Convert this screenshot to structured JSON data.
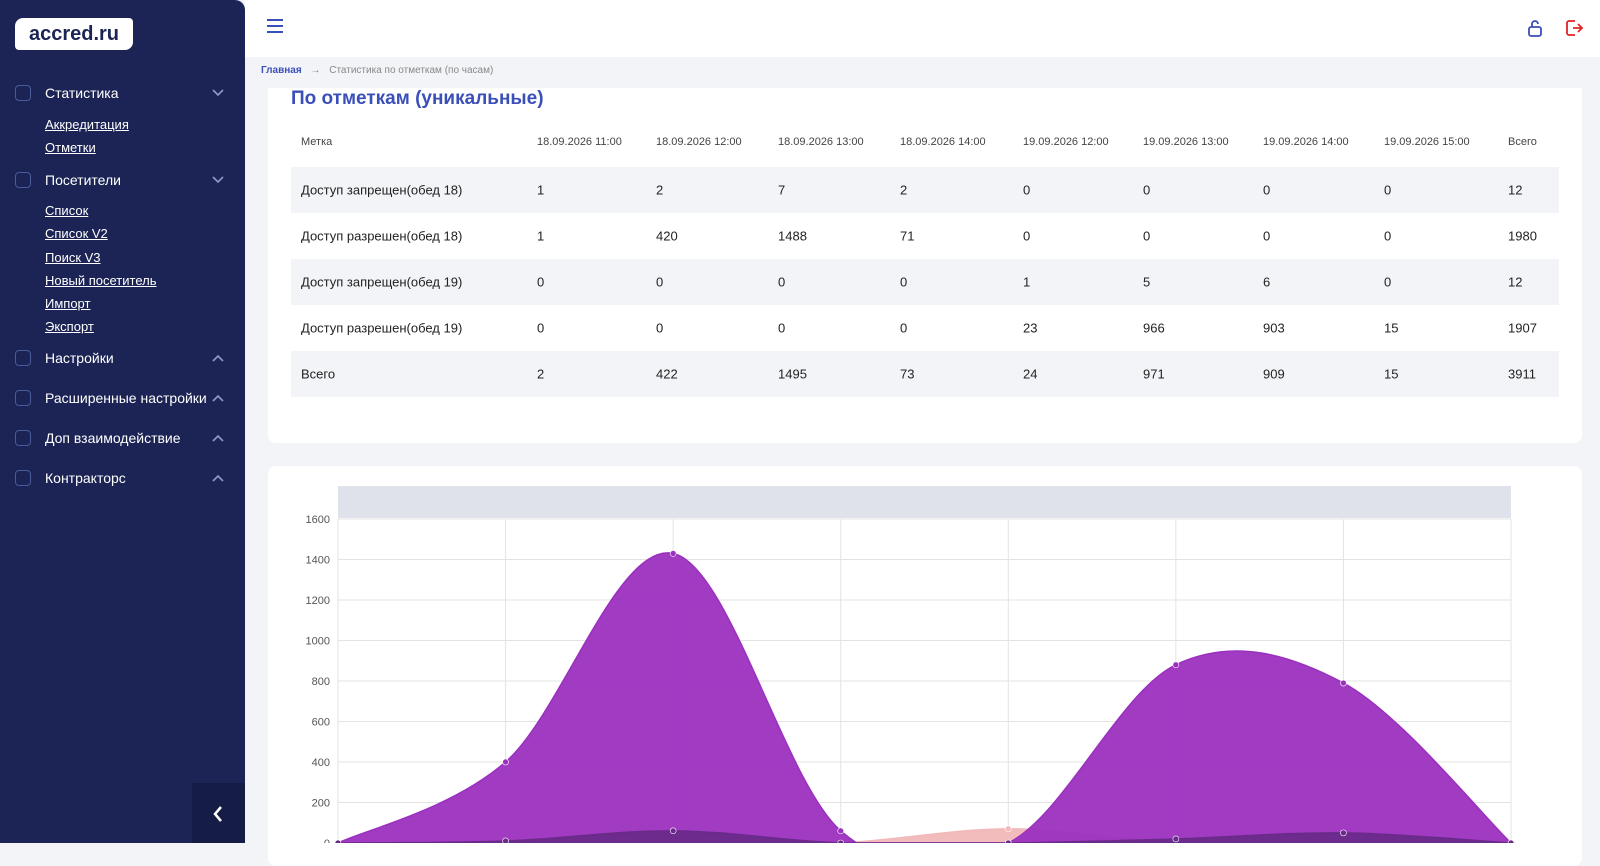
{
  "logo": "accred.ru",
  "sidebar": {
    "sections": [
      {
        "label": "Статистика",
        "links": [
          "Аккредитация",
          "Отметки"
        ]
      },
      {
        "label": "Посетители",
        "links": [
          "Список",
          "Список V2",
          "Поиск V3",
          "Новый посетитель",
          "Импорт",
          "Экспорт"
        ]
      },
      {
        "label": "Настройки",
        "links": []
      },
      {
        "label": "Расширенные настройки",
        "links": []
      },
      {
        "label": "Доп взаимодействие",
        "links": []
      },
      {
        "label": "Контракторс",
        "links": []
      }
    ]
  },
  "breadcrumb": {
    "home": "Главная",
    "current": "Статистика по отметкам (по часам)"
  },
  "table": {
    "title": "По отметкам (уникальные)",
    "header": [
      "Метка",
      "18.09.2026 11:00",
      "18.09.2026 12:00",
      "18.09.2026 13:00",
      "18.09.2026 14:00",
      "19.09.2026 12:00",
      "19.09.2026 13:00",
      "19.09.2026 14:00",
      "19.09.2026 15:00",
      "Всего"
    ],
    "rows": [
      [
        "Доступ запрещен(обед 18)",
        1,
        2,
        7,
        2,
        0,
        0,
        0,
        0,
        12
      ],
      [
        "Доступ разрешен(обед 18)",
        1,
        420,
        1488,
        71,
        0,
        0,
        0,
        0,
        1980
      ],
      [
        "Доступ запрещен(обед 19)",
        0,
        0,
        0,
        0,
        1,
        5,
        6,
        0,
        12
      ],
      [
        "Доступ разрешен(обед 19)",
        0,
        0,
        0,
        0,
        23,
        966,
        903,
        15,
        1907
      ],
      [
        "Всего",
        2,
        422,
        1495,
        73,
        24,
        971,
        909,
        15,
        3911
      ]
    ]
  },
  "chart_data": {
    "type": "area",
    "categories": [
      null,
      null,
      null,
      null,
      null,
      null,
      null,
      null
    ],
    "ylim": [
      0,
      1600
    ],
    "yticks": [
      0,
      200,
      400,
      600,
      800,
      1000,
      1200,
      1400,
      1600
    ],
    "grid": true,
    "series": [
      {
        "color": "#f2b8b8",
        "values": [
          0,
          0,
          0,
          0,
          70,
          0,
          0,
          0
        ]
      },
      {
        "color": "#9b30bf",
        "values": [
          0,
          400,
          1430,
          60,
          0,
          880,
          790,
          0
        ]
      },
      {
        "color": "#6a2a8a",
        "values": [
          0,
          10,
          60,
          0,
          0,
          20,
          50,
          0
        ]
      }
    ]
  }
}
